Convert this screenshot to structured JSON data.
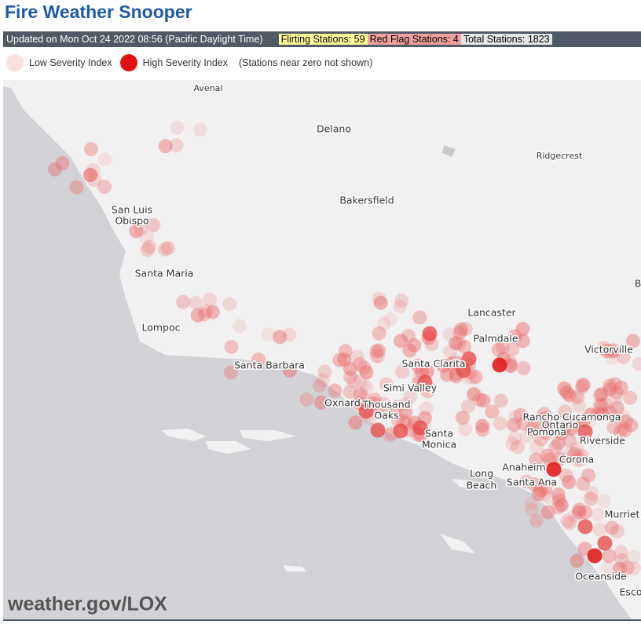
{
  "header": {
    "title": "Fire Weather Snooper"
  },
  "status": {
    "updated": "Updated on Mon Oct 24 2022 08:56 (Pacific Daylight Time)",
    "flirting": "Flirting Stations: 59",
    "red_flag": "Red Flag Stations: 4",
    "total": "Total Stations: 1823"
  },
  "legend": {
    "low": "Low Severity Index",
    "high": "High Severity Index",
    "note": "(Stations near zero not shown)"
  },
  "map": {
    "labels": [
      "Avenal",
      "Delano",
      "Ridgecrest",
      "Bakersfield",
      "San Luis",
      "Obispo",
      "Santa Maria",
      "Lompoc",
      "Lancaster",
      "Palmdale",
      "Victorville",
      "Santa Barbara",
      "Santa Clarita",
      "Simi Valley",
      "Oxnard",
      "Thousand",
      "Oaks",
      "Santa",
      "Monica",
      "Rancho Cucamonga",
      "Ontario",
      "Pomona",
      "Riverside",
      "Long",
      "Beach",
      "Anaheim",
      "Corona",
      "Santa Ana",
      "Murriet",
      "Oceanside",
      "Esco",
      "B"
    ],
    "watermark": "weather.gov/LOX"
  }
}
